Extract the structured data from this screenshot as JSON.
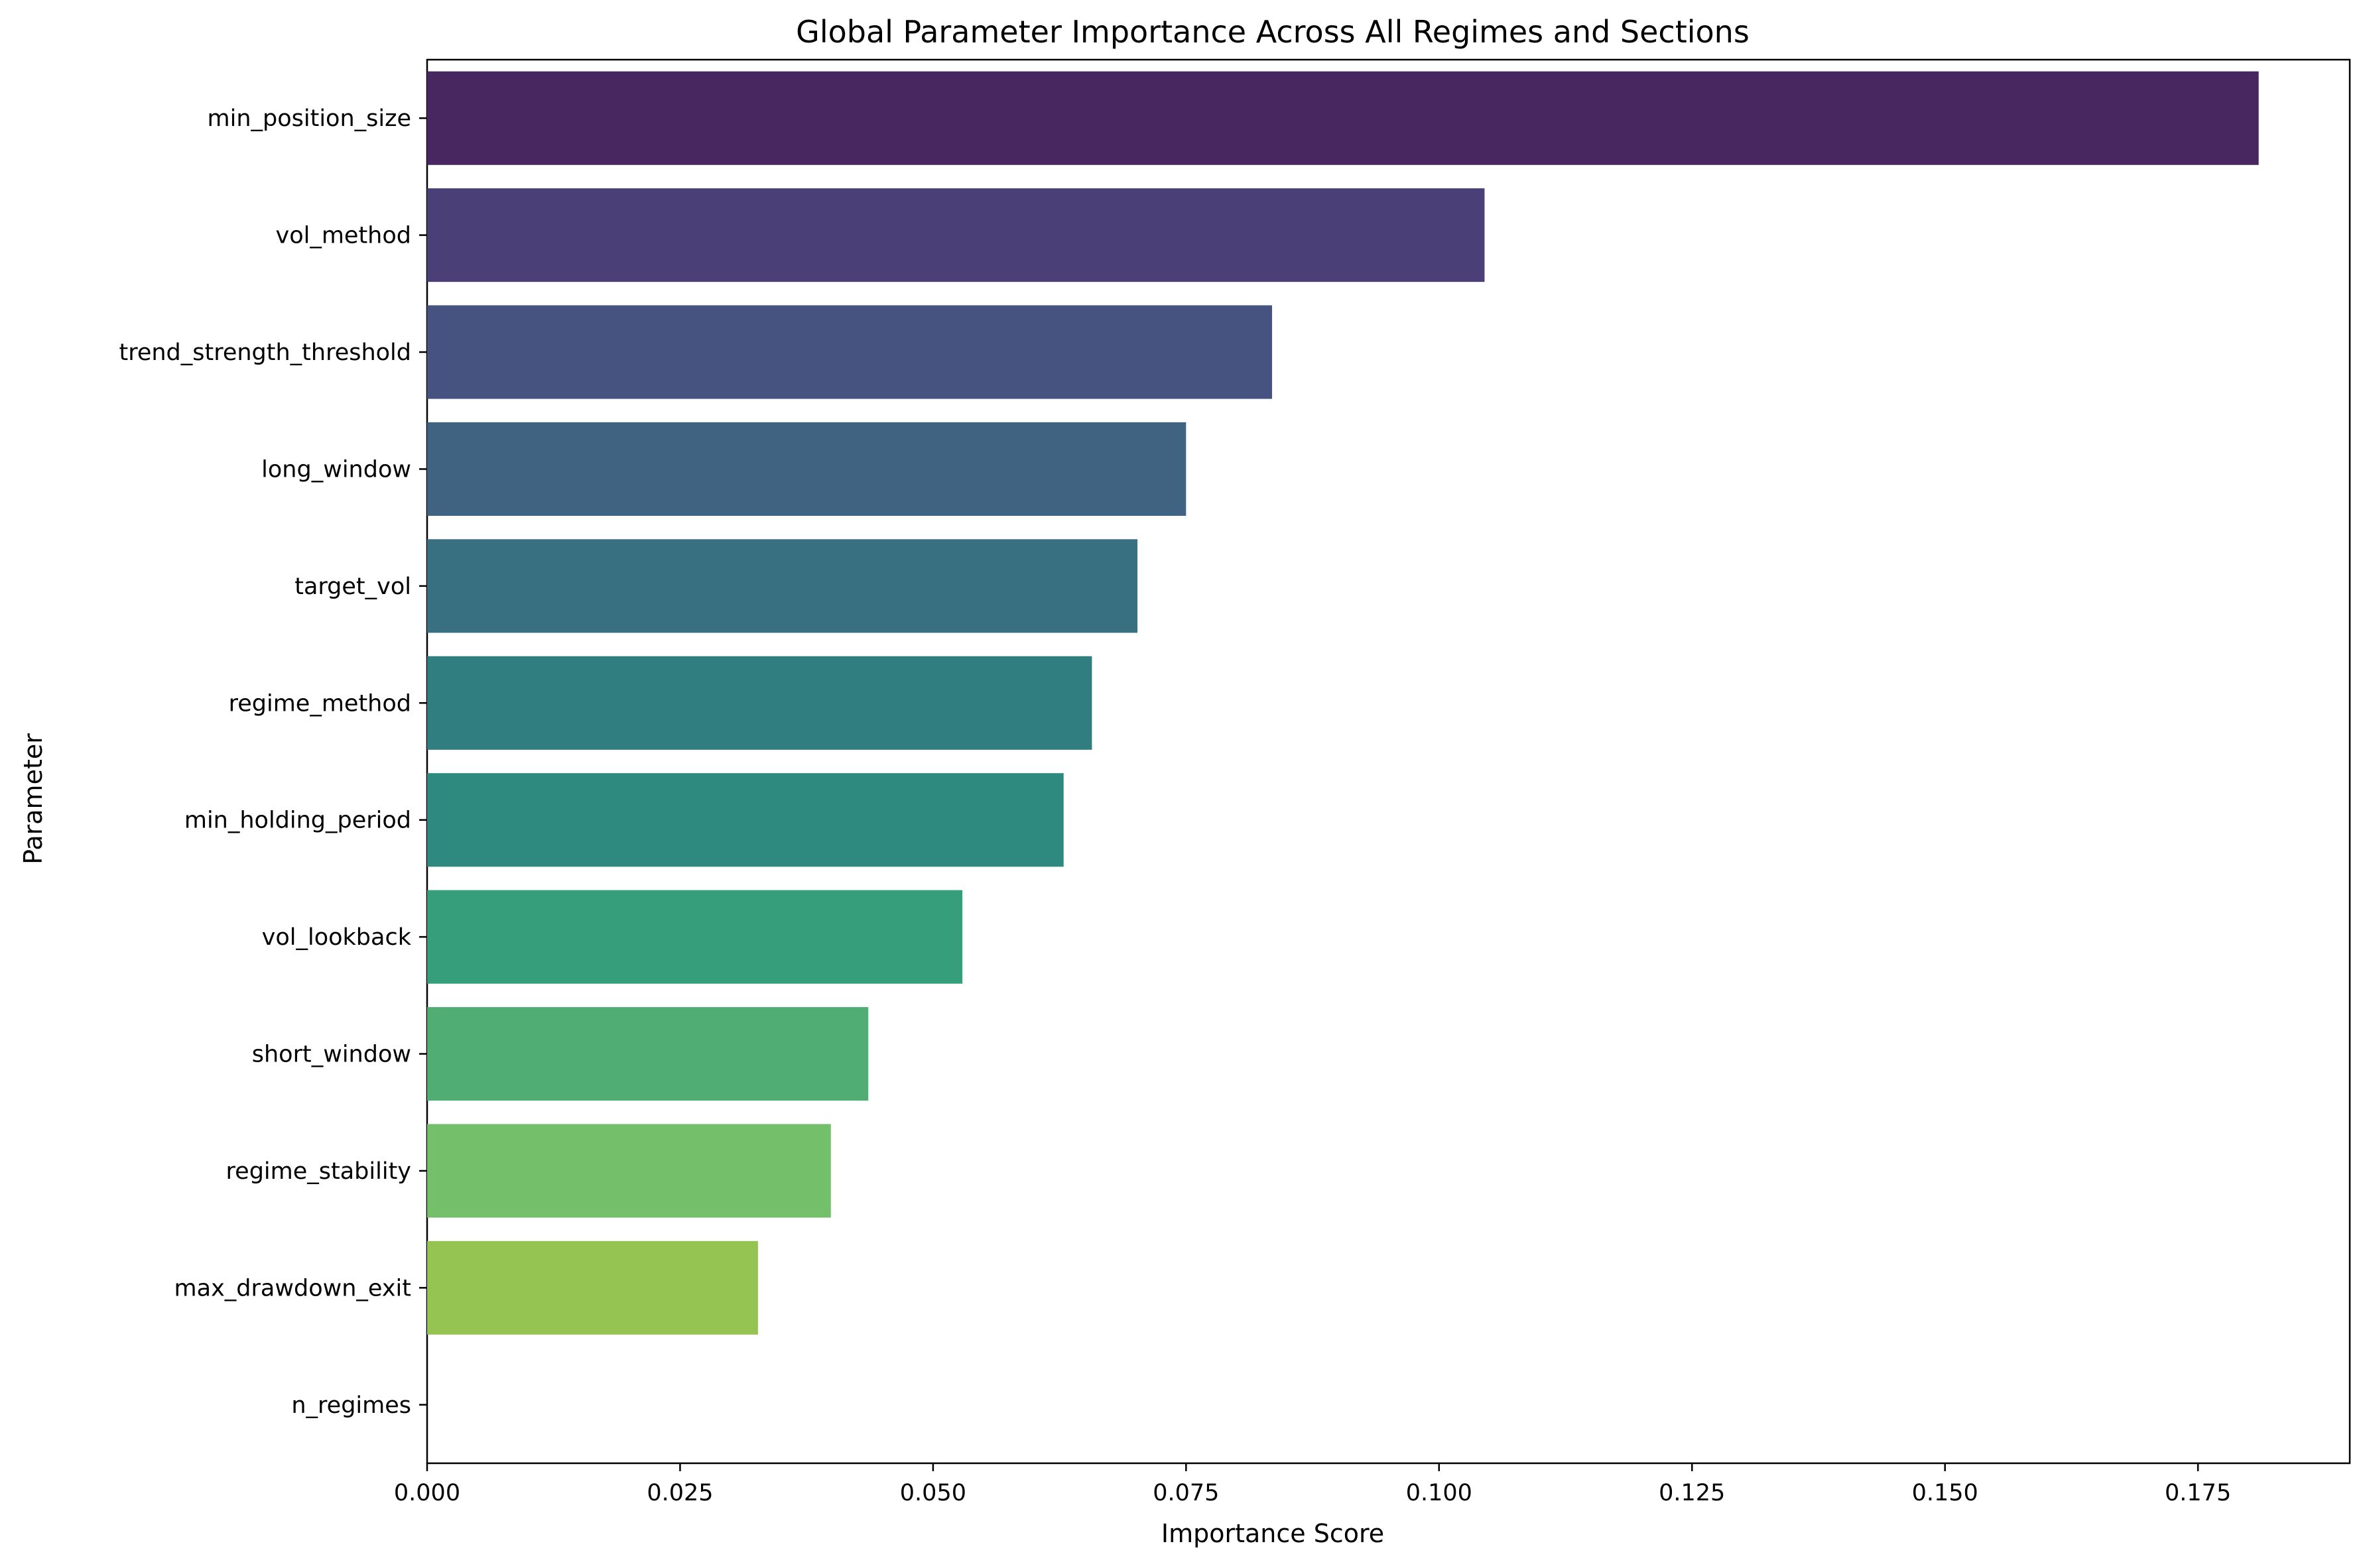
{
  "chart_data": {
    "type": "bar",
    "orientation": "horizontal",
    "title": "Global Parameter Importance Across All Regimes and Sections",
    "xlabel": "Importance Score",
    "ylabel": "Parameter",
    "xlim": [
      0,
      0.19
    ],
    "xticks": [
      0.0,
      0.025,
      0.05,
      0.075,
      0.1,
      0.125,
      0.15,
      0.175
    ],
    "xtick_labels": [
      "0.000",
      "0.025",
      "0.050",
      "0.075",
      "0.100",
      "0.125",
      "0.150",
      "0.175"
    ],
    "grid": false,
    "legend": "none",
    "colormap": "viridis",
    "categories": [
      "min_position_size",
      "vol_method",
      "trend_strength_threshold",
      "long_window",
      "target_vol",
      "regime_method",
      "min_holding_period",
      "vol_lookback",
      "short_window",
      "regime_stability",
      "max_drawdown_exit",
      "n_regimes"
    ],
    "values": [
      0.181,
      0.1045,
      0.0835,
      0.075,
      0.0702,
      0.0657,
      0.0629,
      0.0529,
      0.0436,
      0.0399,
      0.0327,
      0.0
    ],
    "colors": [
      "#482761",
      "#4b3f77",
      "#46527f",
      "#406382",
      "#387081",
      "#317e80",
      "#2e8a7e",
      "#379e7c",
      "#50ad74",
      "#74bf6a",
      "#96c453",
      "#bcd43a"
    ]
  }
}
